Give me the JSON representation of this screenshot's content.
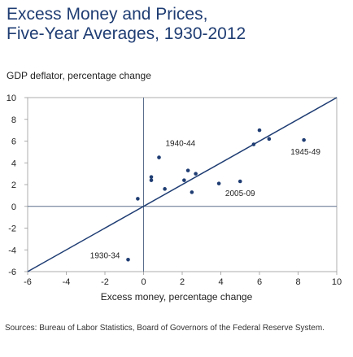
{
  "title": {
    "line1": "Excess Money and Prices,",
    "line2": "Five-Year Averages, 1930-2012"
  },
  "ylabel": "GDP deflator, percentage change",
  "xlabel": "Excess money, percentage change",
  "source": "Sources: Bureau of Labor Statistics, Board of Governors of the Federal Reserve System.",
  "colors": {
    "title": "#1f3d73",
    "points": "#1f3d73",
    "line": "#1f3d73",
    "axes": "#5a6e8c",
    "frame": "#999999",
    "text": "#222222"
  },
  "chart_data": {
    "type": "scatter",
    "xlim": [
      -6,
      10
    ],
    "ylim": [
      -6,
      10
    ],
    "x_ticks": [
      -6,
      -4,
      -2,
      0,
      2,
      4,
      6,
      8,
      10
    ],
    "y_ticks": [
      10,
      8,
      6,
      4,
      2,
      0,
      -2,
      -4,
      -6
    ],
    "grid": false,
    "reference_line": {
      "type": "45-degree",
      "from": [
        -6,
        -6
      ],
      "to": [
        10,
        10
      ]
    },
    "points": [
      {
        "x": -0.3,
        "y": 0.7,
        "label": ""
      },
      {
        "x": 0.4,
        "y": 2.7,
        "label": ""
      },
      {
        "x": 0.4,
        "y": 2.4,
        "label": ""
      },
      {
        "x": 0.8,
        "y": 4.5,
        "label": "1940-44"
      },
      {
        "x": 1.1,
        "y": 1.6,
        "label": ""
      },
      {
        "x": 2.1,
        "y": 2.4,
        "label": ""
      },
      {
        "x": 2.3,
        "y": 3.3,
        "label": ""
      },
      {
        "x": 2.7,
        "y": 3.0,
        "label": ""
      },
      {
        "x": 2.5,
        "y": 1.3,
        "label": ""
      },
      {
        "x": 3.9,
        "y": 2.1,
        "label": ""
      },
      {
        "x": 5.0,
        "y": 2.3,
        "label": "2005-09"
      },
      {
        "x": 5.7,
        "y": 5.7,
        "label": ""
      },
      {
        "x": 6.0,
        "y": 7.0,
        "label": ""
      },
      {
        "x": 6.5,
        "y": 6.2,
        "label": ""
      },
      {
        "x": 8.3,
        "y": 6.1,
        "label": "1945-49"
      },
      {
        "x": -0.8,
        "y": -4.9,
        "label": "1930-34"
      }
    ]
  }
}
